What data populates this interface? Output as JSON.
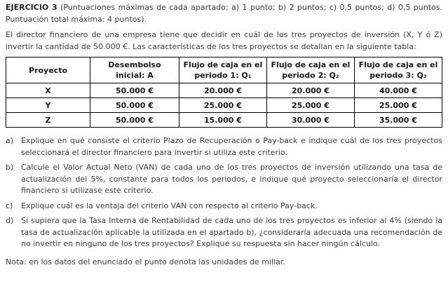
{
  "header": {
    "title": "EJERCICIO 3",
    "scoring": "(Puntuaciones máximas de cada apartado: a) 1 punto; b) 2 puntos; c) 0,5 puntos; d) 0,5 puntos. Puntuación total máxima: 4 puntos)."
  },
  "intro": "El director financiero de una empresa tiene que decidir en cuál de los tres proyectos de inversión (X, Y ó Z) invertir la cantidad de 50.000 €. Las características de los tres proyectos se detallan en la siguiente tabla:",
  "table": {
    "headers": [
      "Proyecto",
      "Desembolso inicial: A",
      "Flujo de caja en el periodo 1: Q₁",
      "Flujo de caja en el periodo 2: Q₂",
      "Flujo de caja en el periodo 3: Q₃"
    ],
    "rows": [
      [
        "X",
        "50.000 €",
        "20.000 €",
        "20.000 €",
        "40.000 €"
      ],
      [
        "Y",
        "50.000 €",
        "25.000 €",
        "25.000 €",
        "25.000 €"
      ],
      [
        "Z",
        "50.000 €",
        "15.000 €",
        "30.000 €",
        "35.000 €"
      ]
    ]
  },
  "questions": [
    {
      "marker": "a)",
      "text": "Explique en qué consiste el criterio Plazo de Recuperación o Pay-back e indique cuál de los tres proyectos seleccionará el director financiero para invertir si utiliza este criterio."
    },
    {
      "marker": "b)",
      "text": "Calcule el Valor Actual Neto (VAN) de cada uno de los tres proyectos de inversión utilizando una tasa de actualización del 5%, constante para todos los periodos, e indique qué proyecto seleccionaría el director financiero si utilizase este criterio."
    },
    {
      "marker": "c)",
      "text": "Explique cuál es la ventaja del criterio VAN con respecto al criterio Pay-back."
    },
    {
      "marker": "d)",
      "text": "Si supiera que la Tasa Interna de Rentabilidad de cada uno de los tres proyectos es inferior al 4% (siendo la tasa de actualización aplicable la utilizada en el apartado b), ¿consideraría adecuada una recomendación de no invertir en ninguno de los tres proyectos? Explique su respuesta sin hacer ningún cálculo."
    }
  ],
  "note": "Nota: en los datos del enunciado el punto denota las unidades de millar."
}
